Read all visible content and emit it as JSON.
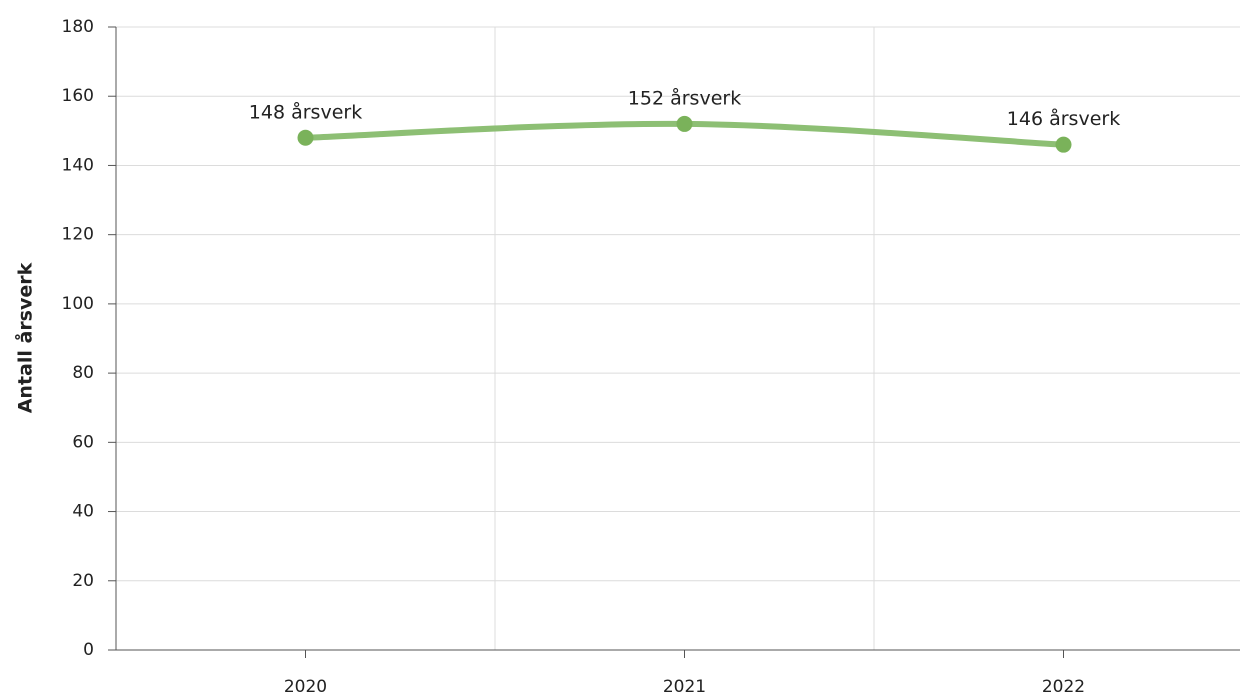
{
  "chart_data": {
    "type": "line",
    "y_label": "Antall årsverk",
    "categories": [
      "2020",
      "2021",
      "2022"
    ],
    "series": [
      {
        "name": "Antall årsverk",
        "color": "#8dbf74",
        "marker_color": "#7ab25a",
        "values": [
          148,
          152,
          146
        ],
        "value_labels": [
          "148 årsverk",
          "152 årsverk",
          "146 årsverk"
        ]
      }
    ],
    "ylim": [
      0,
      180
    ],
    "yticks": [
      0,
      20,
      40,
      60,
      80,
      100,
      120,
      140,
      160,
      180
    ],
    "grid": true
  }
}
